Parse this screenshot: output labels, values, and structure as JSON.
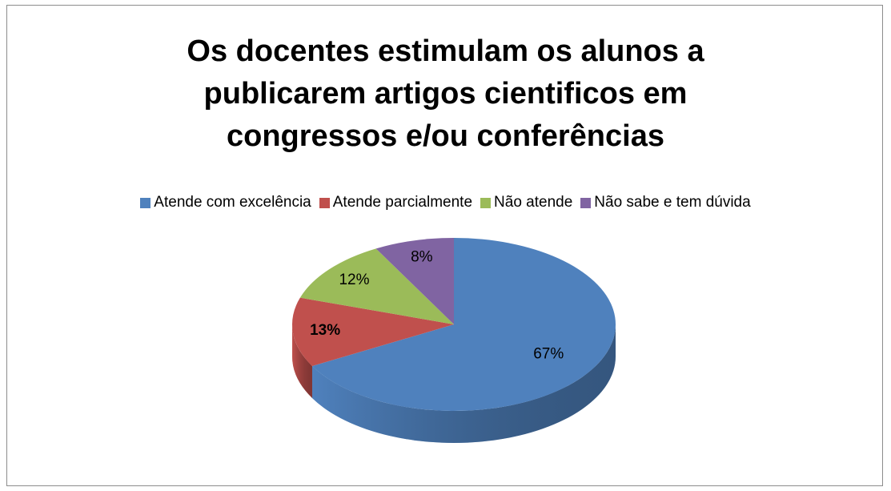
{
  "chart_data": {
    "type": "pie",
    "title": "Os docentes estimulam os alunos a publicarem artigos cientificos em congressos e/ou conferências",
    "categories": [
      "Atende com excelência",
      "Atende parcialmente",
      "Não atende",
      "Não sabe e tem dúvida"
    ],
    "values": [
      67,
      13,
      12,
      8
    ],
    "value_labels": [
      "67%",
      "13%",
      "12%",
      "8%"
    ],
    "colors": [
      "#4f81bd",
      "#c0504d",
      "#9bbb59",
      "#8064a2"
    ],
    "legend": "top"
  }
}
